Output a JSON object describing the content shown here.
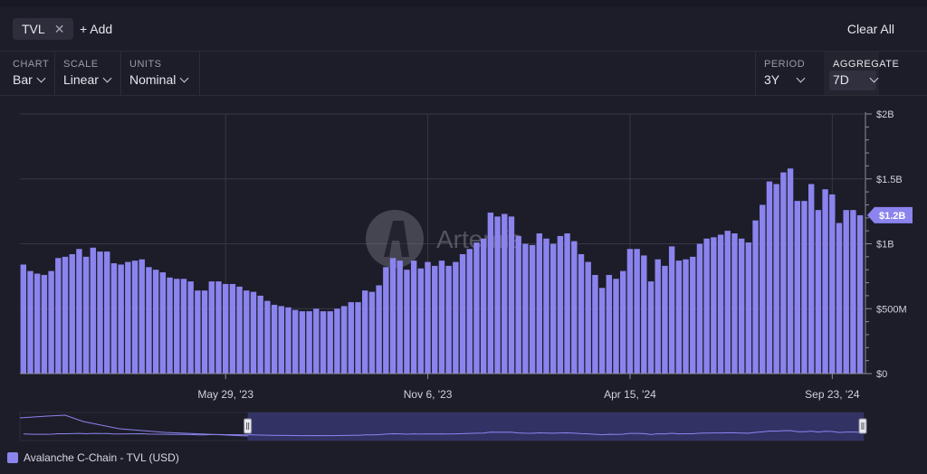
{
  "toolbar": {
    "chip_label": "TVL",
    "chip_close": "✕",
    "add_label": "+ Add",
    "clear_label": "Clear All"
  },
  "controls": {
    "chart": {
      "label": "CHART",
      "value": "Bar"
    },
    "scale": {
      "label": "SCALE",
      "value": "Linear"
    },
    "units": {
      "label": "UNITS",
      "value": "Nominal"
    },
    "period": {
      "label": "PERIOD",
      "value": "3Y"
    },
    "aggregate": {
      "label": "AGGREGATE",
      "value": "7D"
    }
  },
  "watermark": "Artemis",
  "legend": {
    "label": "Avalanche C-Chain - TVL (USD)"
  },
  "colors": {
    "bar": "#8b84ee",
    "background": "#1d1d29",
    "grid": "#3a3a48",
    "badge": "#8b84ee"
  },
  "chart_data": {
    "type": "bar",
    "xlabel": "",
    "ylabel": "",
    "ylim": [
      0,
      2000000000
    ],
    "yticks": [
      {
        "value": 0,
        "label": "$0"
      },
      {
        "value": 500000000,
        "label": "$500M"
      },
      {
        "value": 1000000000,
        "label": "$1B"
      },
      {
        "value": 1500000000,
        "label": "$1.5B"
      },
      {
        "value": 2000000000,
        "label": "$2B"
      }
    ],
    "xticks": [
      {
        "index": 29,
        "label": "May 29, '23"
      },
      {
        "index": 58,
        "label": "Nov 6, '23"
      },
      {
        "index": 87,
        "label": "Apr 15, '24"
      },
      {
        "index": 116,
        "label": "Sep 23, '24"
      }
    ],
    "current_value_label": "$1.2B",
    "series": [
      {
        "name": "Avalanche C-Chain - TVL (USD)",
        "values": [
          840,
          790,
          770,
          760,
          790,
          890,
          900,
          920,
          960,
          900,
          970,
          940,
          940,
          850,
          840,
          860,
          870,
          880,
          820,
          800,
          780,
          740,
          730,
          730,
          710,
          640,
          640,
          710,
          710,
          690,
          690,
          670,
          640,
          630,
          600,
          560,
          530,
          520,
          510,
          490,
          480,
          480,
          500,
          480,
          480,
          500,
          520,
          550,
          550,
          640,
          630,
          680,
          820,
          890,
          870,
          800,
          870,
          810,
          860,
          830,
          870,
          830,
          860,
          920,
          960,
          1010,
          1040,
          1240,
          1210,
          1230,
          1210,
          1060,
          1000,
          990,
          1080,
          1040,
          1000,
          1060,
          1080,
          1020,
          920,
          860,
          760,
          660,
          760,
          730,
          790,
          960,
          960,
          910,
          710,
          880,
          830,
          980,
          870,
          880,
          900,
          1000,
          1040,
          1050,
          1070,
          1100,
          1080,
          1040,
          1010,
          1180,
          1300,
          1480,
          1460,
          1550,
          1580,
          1330,
          1330,
          1460,
          1260,
          1420,
          1380,
          1160,
          1260,
          1260,
          1220
        ]
      }
    ],
    "navigator": {
      "selected_from_fraction": 0.27,
      "selected_to_fraction": 1.0
    }
  }
}
